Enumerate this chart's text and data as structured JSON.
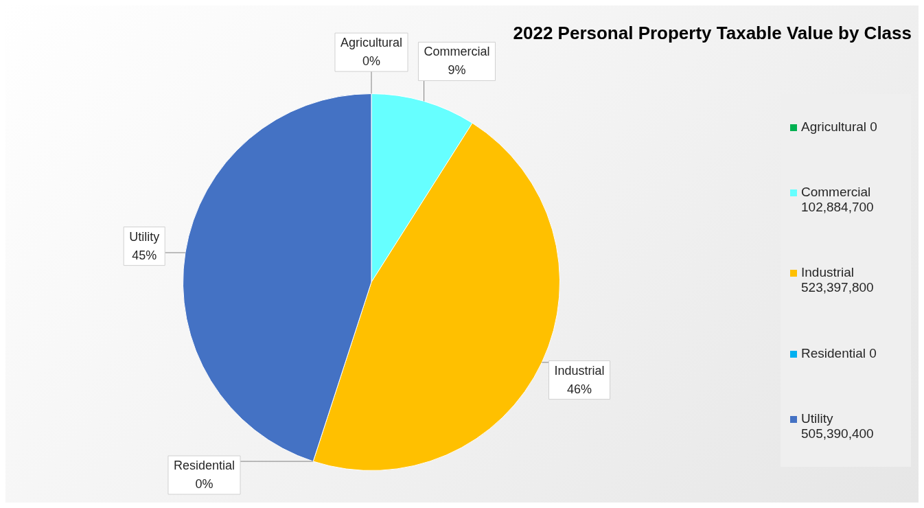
{
  "chart_data": {
    "type": "pie",
    "title": "2022 Personal Property Taxable Value by Class",
    "categories": [
      "Agricultural",
      "Commercial",
      "Industrial",
      "Residential",
      "Utility"
    ],
    "values": [
      0,
      9,
      46,
      0,
      45
    ],
    "value_labels": [
      "0%",
      "9%",
      "46%",
      "0%",
      "45%"
    ],
    "annotations": [
      "0",
      "102,884,700",
      "523,397,800",
      "0",
      "505,390,400"
    ],
    "colors": [
      "#00b050",
      "#66ffff",
      "#ffc000",
      "#00b0f0",
      "#4472c4"
    ],
    "legend": "right"
  }
}
